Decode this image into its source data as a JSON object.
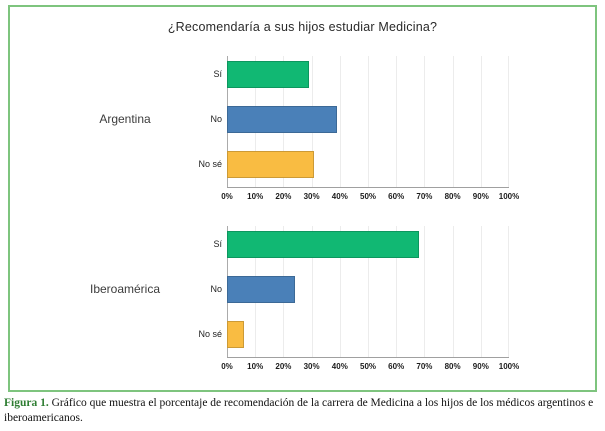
{
  "figure": {
    "frame_border_color": "#7ec47e",
    "caption_label": "Figura 1.",
    "caption_label_color": "#2e7d32",
    "caption_text": "Gráfico que muestra el porcentaje de recomendación de la carrera de Medicina a los hijos de los médicos argentinos e iberoamericanos."
  },
  "chart_data": [
    {
      "type": "bar",
      "orientation": "horizontal",
      "title": "¿Recomendaría a sus hijos estudiar Medicina?",
      "group_label": "Argentina",
      "categories": [
        "Sí",
        "No",
        "No sé"
      ],
      "values": [
        29,
        39,
        31
      ],
      "value_unit": "%",
      "bar_colors": [
        "#11b873",
        "#4a80b8",
        "#f9bc42"
      ],
      "xlim": [
        0,
        100
      ],
      "x_ticks": [
        "0%",
        "10%",
        "20%",
        "30%",
        "40%",
        "50%",
        "60%",
        "70%",
        "80%",
        "90%",
        "100%"
      ],
      "grid": true,
      "legend": false,
      "xlabel": "",
      "ylabel": ""
    },
    {
      "type": "bar",
      "orientation": "horizontal",
      "title": "",
      "group_label": "Iberoamérica",
      "categories": [
        "Sí",
        "No",
        "No sé"
      ],
      "values": [
        68,
        24,
        6
      ],
      "value_unit": "%",
      "bar_colors": [
        "#11b873",
        "#4a80b8",
        "#f9bc42"
      ],
      "xlim": [
        0,
        100
      ],
      "x_ticks": [
        "0%",
        "10%",
        "20%",
        "30%",
        "40%",
        "50%",
        "60%",
        "70%",
        "80%",
        "90%",
        "100%"
      ],
      "grid": true,
      "legend": false,
      "xlabel": "",
      "ylabel": ""
    }
  ]
}
